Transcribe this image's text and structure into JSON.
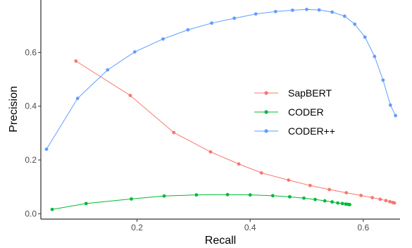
{
  "chart_data": {
    "type": "line",
    "title": "",
    "xlabel": "Recall",
    "ylabel": "Precision",
    "xlim": [
      0.03,
      0.665
    ],
    "ylim": [
      -0.02,
      0.795
    ],
    "xticks": [
      0.2,
      0.4,
      0.6
    ],
    "yticks": [
      0.0,
      0.2,
      0.4,
      0.6
    ],
    "xtick_labels": [
      "0.2",
      "0.4",
      "0.6"
    ],
    "ytick_labels": [
      "0.0",
      "0.2",
      "0.4",
      "0.6"
    ],
    "grid": false,
    "legend_position": "right-center",
    "series": [
      {
        "name": "SapBERT",
        "color": "#F8766D",
        "x": [
          0.092,
          0.188,
          0.265,
          0.33,
          0.38,
          0.42,
          0.468,
          0.506,
          0.54,
          0.57,
          0.596,
          0.616,
          0.63,
          0.64,
          0.647,
          0.652,
          0.655
        ],
        "y": [
          0.568,
          0.44,
          0.302,
          0.23,
          0.185,
          0.152,
          0.125,
          0.105,
          0.09,
          0.078,
          0.068,
          0.06,
          0.054,
          0.049,
          0.045,
          0.042,
          0.04
        ]
      },
      {
        "name": "CODER",
        "color": "#00BA38",
        "x": [
          0.05,
          0.11,
          0.19,
          0.248,
          0.305,
          0.36,
          0.4,
          0.44,
          0.47,
          0.495,
          0.515,
          0.532,
          0.545,
          0.555,
          0.563,
          0.569,
          0.573,
          0.576
        ],
        "y": [
          0.016,
          0.038,
          0.055,
          0.066,
          0.07,
          0.071,
          0.07,
          0.067,
          0.063,
          0.058,
          0.053,
          0.048,
          0.044,
          0.04,
          0.038,
          0.036,
          0.035,
          0.034
        ]
      },
      {
        "name": "CODER++",
        "color": "#619CFF",
        "x": [
          0.04,
          0.095,
          0.148,
          0.196,
          0.246,
          0.29,
          0.332,
          0.372,
          0.41,
          0.445,
          0.475,
          0.5,
          0.522,
          0.545,
          0.567,
          0.585,
          0.603,
          0.62,
          0.635,
          0.648,
          0.657
        ],
        "y": [
          0.24,
          0.429,
          0.535,
          0.602,
          0.65,
          0.684,
          0.709,
          0.727,
          0.743,
          0.752,
          0.757,
          0.76,
          0.758,
          0.75,
          0.735,
          0.705,
          0.657,
          0.585,
          0.497,
          0.404,
          0.365
        ]
      }
    ]
  }
}
